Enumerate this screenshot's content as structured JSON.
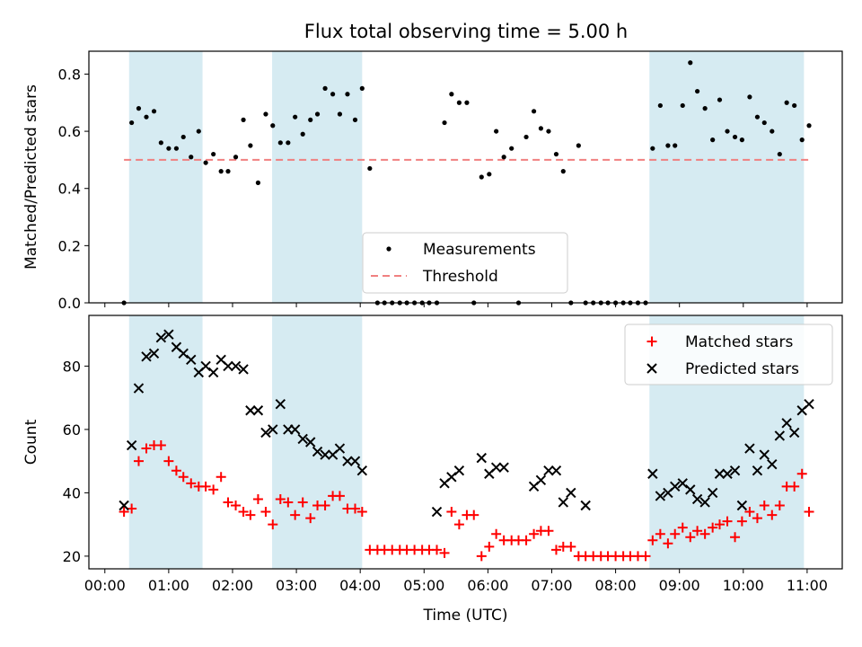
{
  "title": "Flux total observing time = 5.00 h",
  "chart_data": [
    {
      "type": "scatter",
      "ylabel": "Matched/Predicted stars",
      "ylim": [
        0,
        0.88
      ],
      "yticks": [
        "0.0",
        "0.2",
        "0.4",
        "0.6",
        "0.8"
      ],
      "ytick_values": [
        0,
        0.2,
        0.4,
        0.6,
        0.8
      ],
      "threshold": 0.5,
      "legend": {
        "position": "lower center",
        "entries": [
          "Measurements",
          "Threshold"
        ]
      },
      "series": [
        {
          "name": "Measurements",
          "color": "#000000",
          "x": [
            0.3,
            0.42,
            0.53,
            0.65,
            0.77,
            0.88,
            1.0,
            1.12,
            1.23,
            1.35,
            1.47,
            1.58,
            1.7,
            1.82,
            1.93,
            2.05,
            2.17,
            2.28,
            2.4,
            2.52,
            2.63,
            2.75,
            2.87,
            2.98,
            3.1,
            3.22,
            3.33,
            3.45,
            3.57,
            3.68,
            3.8,
            3.92,
            4.03,
            4.15,
            4.27,
            4.38,
            4.5,
            4.62,
            4.73,
            4.85,
            4.97,
            5.08,
            5.2,
            5.32,
            5.43,
            5.55,
            5.67,
            5.78,
            5.9,
            6.02,
            6.13,
            6.25,
            6.37,
            6.48,
            6.6,
            6.72,
            6.83,
            6.95,
            7.07,
            7.18,
            7.3,
            7.42,
            7.53,
            7.65,
            7.77,
            7.88,
            8.0,
            8.12,
            8.23,
            8.35,
            8.47,
            8.58,
            8.7,
            8.82,
            8.93,
            9.05,
            9.17,
            9.28,
            9.4,
            9.52,
            9.63,
            9.75,
            9.87,
            9.98,
            10.1,
            10.22,
            10.33,
            10.45,
            10.57,
            10.68,
            10.8,
            10.92,
            11.03
          ],
          "y": [
            0.0,
            0.63,
            0.68,
            0.65,
            0.67,
            0.56,
            0.54,
            0.54,
            0.58,
            0.51,
            0.6,
            0.49,
            0.52,
            0.46,
            0.46,
            0.51,
            0.64,
            0.55,
            0.42,
            0.66,
            0.62,
            0.56,
            0.56,
            0.65,
            0.59,
            0.64,
            0.66,
            0.75,
            0.73,
            0.66,
            0.73,
            0.64,
            0.75,
            0.47,
            0.0,
            0.0,
            0.0,
            0.0,
            0.0,
            0.0,
            0.0,
            0.0,
            0.0,
            0.63,
            0.73,
            0.7,
            0.7,
            0.0,
            0.44,
            0.45,
            0.6,
            0.51,
            0.54,
            0.0,
            0.58,
            0.67,
            0.61,
            0.6,
            0.52,
            0.46,
            0.0,
            0.55,
            0.0,
            0.0,
            0.0,
            0.0,
            0.0,
            0.0,
            0.0,
            0.0,
            0.0,
            0.54,
            0.69,
            0.55,
            0.55,
            0.69,
            0.84,
            0.74,
            0.68,
            0.57,
            0.71,
            0.6,
            0.58,
            0.57,
            0.72,
            0.65,
            0.63,
            0.6,
            0.52,
            0.7,
            0.69,
            0.57,
            0.62
          ]
        },
        {
          "name": "Threshold",
          "color": "#f08080",
          "x": [
            0.3,
            11.03
          ],
          "y": [
            0.5,
            0.5
          ]
        }
      ],
      "shaded_intervals": [
        [
          0.38,
          1.53
        ],
        [
          2.62,
          4.03
        ],
        [
          8.53,
          10.95
        ]
      ],
      "shade_color": "#add8e6"
    },
    {
      "type": "scatter",
      "xlabel": "Time (UTC)",
      "ylabel": "Count",
      "ylim": [
        16,
        96
      ],
      "yticks": [
        "20",
        "40",
        "60",
        "80"
      ],
      "ytick_values": [
        20,
        40,
        60,
        80
      ],
      "xlim": [
        -0.25,
        11.55
      ],
      "xticks": [
        "00:00",
        "01:00",
        "02:00",
        "03:00",
        "04:00",
        "05:00",
        "06:00",
        "07:00",
        "08:00",
        "09:00",
        "10:00",
        "11:00"
      ],
      "xtick_values": [
        0,
        1,
        2,
        3,
        4,
        5,
        6,
        7,
        8,
        9,
        10,
        11
      ],
      "legend": {
        "position": "upper right",
        "entries": [
          "Matched stars",
          "Predicted stars"
        ]
      },
      "series": [
        {
          "name": "Matched stars",
          "color": "#ff0000",
          "marker": "+",
          "x": [
            0.3,
            0.42,
            0.53,
            0.65,
            0.77,
            0.88,
            1.0,
            1.12,
            1.23,
            1.35,
            1.47,
            1.58,
            1.7,
            1.82,
            1.93,
            2.05,
            2.17,
            2.28,
            2.4,
            2.52,
            2.63,
            2.75,
            2.87,
            2.98,
            3.1,
            3.22,
            3.33,
            3.45,
            3.57,
            3.68,
            3.8,
            3.92,
            4.03,
            4.15,
            4.27,
            4.38,
            4.5,
            4.62,
            4.73,
            4.85,
            4.97,
            5.08,
            5.2,
            5.32,
            5.43,
            5.55,
            5.67,
            5.78,
            5.9,
            6.02,
            6.13,
            6.25,
            6.37,
            6.48,
            6.6,
            6.72,
            6.83,
            6.95,
            7.07,
            7.18,
            7.3,
            7.42,
            7.53,
            7.65,
            7.77,
            7.88,
            8.0,
            8.12,
            8.23,
            8.35,
            8.47,
            8.58,
            8.7,
            8.82,
            8.93,
            9.05,
            9.17,
            9.28,
            9.4,
            9.52,
            9.63,
            9.75,
            9.87,
            9.98,
            10.1,
            10.22,
            10.33,
            10.45,
            10.57,
            10.68,
            10.8,
            10.92,
            11.03
          ],
          "y": [
            34,
            35,
            50,
            54,
            55,
            55,
            50,
            47,
            45,
            43,
            42,
            42,
            41,
            45,
            37,
            36,
            34,
            33,
            38,
            34,
            30,
            38,
            37,
            33,
            37,
            32,
            36,
            36,
            39,
            39,
            35,
            35,
            34,
            22,
            22,
            22,
            22,
            22,
            22,
            22,
            22,
            22,
            22,
            21,
            34,
            30,
            33,
            33,
            20,
            23,
            27,
            25,
            25,
            25,
            25,
            27,
            28,
            28,
            22,
            23,
            23,
            20,
            20,
            20,
            20,
            20,
            20,
            20,
            20,
            20,
            20,
            25,
            27,
            24,
            27,
            29,
            26,
            28,
            27,
            29,
            30,
            31,
            26,
            31,
            34,
            32,
            36,
            33,
            36,
            42,
            42,
            46,
            34
          ]
        },
        {
          "name": "Predicted stars",
          "color": "#000000",
          "marker": "x",
          "x": [
            0.3,
            0.42,
            0.53,
            0.65,
            0.77,
            0.88,
            1.0,
            1.12,
            1.23,
            1.35,
            1.47,
            1.58,
            1.7,
            1.82,
            1.93,
            2.05,
            2.17,
            2.28,
            2.4,
            2.52,
            2.63,
            2.75,
            2.87,
            2.98,
            3.1,
            3.22,
            3.33,
            3.45,
            3.57,
            3.68,
            3.8,
            3.92,
            4.03,
            5.2,
            5.32,
            5.43,
            5.55,
            5.9,
            6.02,
            6.13,
            6.25,
            6.72,
            6.83,
            6.95,
            7.07,
            7.18,
            7.3,
            7.53,
            8.58,
            8.7,
            8.82,
            8.93,
            9.05,
            9.17,
            9.28,
            9.4,
            9.52,
            9.63,
            9.75,
            9.87,
            9.98,
            10.1,
            10.22,
            10.33,
            10.45,
            10.57,
            10.68,
            10.8,
            10.92,
            11.03
          ],
          "y": [
            36,
            55,
            73,
            83,
            84,
            89,
            90,
            86,
            84,
            82,
            78,
            80,
            78,
            82,
            80,
            80,
            79,
            66,
            66,
            59,
            60,
            68,
            60,
            60,
            57,
            56,
            53,
            52,
            52,
            54,
            50,
            50,
            47,
            34,
            43,
            45,
            47,
            51,
            46,
            48,
            48,
            42,
            44,
            47,
            47,
            37,
            40,
            36,
            46,
            39,
            40,
            42,
            43,
            41,
            38,
            37,
            40,
            46,
            46,
            47,
            36,
            54,
            47,
            52,
            49,
            58,
            62,
            59,
            66,
            68
          ]
        }
      ],
      "shaded_intervals": [
        [
          0.38,
          1.53
        ],
        [
          2.62,
          4.03
        ],
        [
          8.53,
          10.95
        ]
      ],
      "shade_color": "#add8e6"
    }
  ]
}
